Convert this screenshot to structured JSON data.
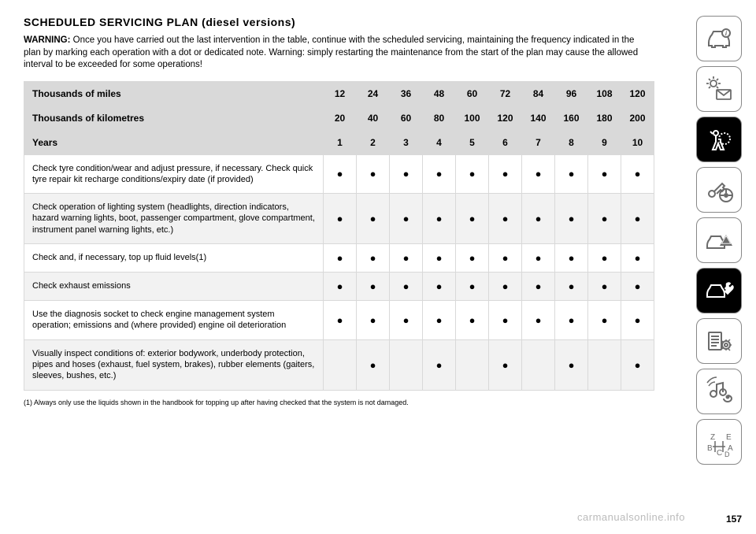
{
  "title": "SCHEDULED SERVICING PLAN (diesel versions)",
  "warning_label": "WARNING:",
  "warning_text": "Once you have carried out the last intervention in the table, continue with the scheduled servicing, maintaining the frequency indicated in the plan by marking each operation with a dot or dedicated note. Warning: simply restarting the maintenance from the start of the plan may cause the allowed interval to be exceeded for some operations!",
  "header_rows": [
    {
      "label": "Thousands of miles",
      "values": [
        "12",
        "24",
        "36",
        "48",
        "60",
        "72",
        "84",
        "96",
        "108",
        "120"
      ]
    },
    {
      "label": "Thousands of kilometres",
      "values": [
        "20",
        "40",
        "60",
        "80",
        "100",
        "120",
        "140",
        "160",
        "180",
        "200"
      ]
    },
    {
      "label": "Years",
      "values": [
        "1",
        "2",
        "3",
        "4",
        "5",
        "6",
        "7",
        "8",
        "9",
        "10"
      ]
    }
  ],
  "rows": [
    {
      "desc": "Check tyre condition/wear and adjust pressure, if necessary. Check quick tyre repair kit recharge conditions/expiry date (if provided)",
      "marks": [
        true,
        true,
        true,
        true,
        true,
        true,
        true,
        true,
        true,
        true
      ]
    },
    {
      "desc": "Check operation of lighting system (headlights, direction indicators, hazard warning lights, boot, passenger compartment, glove compartment, instrument panel warning lights, etc.)",
      "marks": [
        true,
        true,
        true,
        true,
        true,
        true,
        true,
        true,
        true,
        true
      ]
    },
    {
      "desc": "Check and, if necessary, top up fluid levels(1)",
      "marks": [
        true,
        true,
        true,
        true,
        true,
        true,
        true,
        true,
        true,
        true
      ]
    },
    {
      "desc": "Check exhaust emissions",
      "marks": [
        true,
        true,
        true,
        true,
        true,
        true,
        true,
        true,
        true,
        true
      ]
    },
    {
      "desc": "Use the diagnosis socket to check engine management system operation; emissions and (where provided) engine oil deterioration",
      "marks": [
        true,
        true,
        true,
        true,
        true,
        true,
        true,
        true,
        true,
        true
      ]
    },
    {
      "desc": "Visually inspect conditions of: exterior bodywork, underbody protection, pipes and hoses (exhaust, fuel system, brakes), rubber elements (gaiters, sleeves, bushes, etc.)",
      "marks": [
        false,
        true,
        false,
        true,
        false,
        true,
        false,
        true,
        false,
        true
      ]
    }
  ],
  "footnote": "(1) Always only use the liquids shown in the handbook for topping up after having checked that the system is not damaged.",
  "page_number": "157",
  "watermark": "carmanualsonline.info",
  "colors": {
    "header_bg": "#d9d9d9",
    "row_alt_bg": "#f2f2f2",
    "border": "#d9d9d9",
    "icon_stroke": "#6b6b6b",
    "icon_active_bg": "#000000"
  },
  "sidebar": [
    {
      "name": "car-info-icon"
    },
    {
      "name": "lights-mail-icon"
    },
    {
      "name": "airbag-icon",
      "active": true
    },
    {
      "name": "key-wheel-icon"
    },
    {
      "name": "car-hazard-icon"
    },
    {
      "name": "car-wrench-icon",
      "active": true
    },
    {
      "name": "doc-gear-icon"
    },
    {
      "name": "media-gps-icon"
    },
    {
      "name": "alphabet-icon"
    }
  ]
}
